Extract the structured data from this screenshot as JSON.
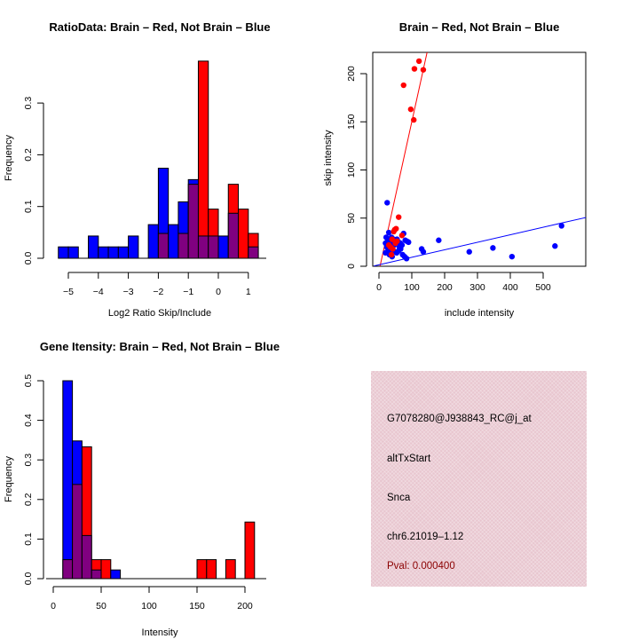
{
  "chart_data": [
    {
      "type": "bar",
      "subtype": "overlaid-histogram",
      "title": "RatioData: Brain – Red, Not Brain – Blue",
      "xlabel": "Log2 Ratio Skip/Include",
      "ylabel": "Frequency",
      "xlim": [
        -5.27,
        1.4
      ],
      "ylim": [
        0,
        0.38
      ],
      "xticks": [
        -5,
        -4,
        -3,
        -2,
        -1,
        0,
        1
      ],
      "xtick_labels": [
        "−5",
        "−4",
        "−3",
        "−2",
        "−1",
        "0",
        "1"
      ],
      "yticks": [
        0.0,
        0.1,
        0.2,
        0.3
      ],
      "ytick_labels": [
        "0.0",
        "0.1",
        "0.2",
        "0.3"
      ],
      "bin_start": -5.333,
      "bin_width": 0.3333,
      "series": [
        {
          "name": "Not Brain",
          "color": "#0000ff",
          "values": [
            0.022,
            0.022,
            0,
            0.043,
            0.022,
            0.022,
            0.022,
            0.043,
            0,
            0.065,
            0.174,
            0.065,
            0.109,
            0.152,
            0.043,
            0.043,
            0.043,
            0.087,
            0,
            0.022
          ]
        },
        {
          "name": "Brain",
          "color": "#ff0000",
          "values": [
            0,
            0,
            0,
            0,
            0,
            0,
            0,
            0,
            0,
            0,
            0.048,
            0,
            0.048,
            0.143,
            0.381,
            0.095,
            0,
            0.143,
            0.095,
            0.048
          ]
        }
      ],
      "overlap_color": "#800080"
    },
    {
      "type": "scatter",
      "title": "Brain – Red, Not Brain – Blue",
      "xlabel": "include intensity",
      "ylabel": "skip intensity",
      "xlim": [
        -15,
        565
      ],
      "ylim": [
        0,
        222
      ],
      "xticks": [
        0,
        100,
        200,
        300,
        400,
        500
      ],
      "xtick_labels": [
        "0",
        "100",
        "200",
        "300",
        "400",
        "500"
      ],
      "yticks": [
        0,
        50,
        100,
        150,
        200
      ],
      "ytick_labels": [
        "0",
        "50",
        "100",
        "150",
        "200"
      ],
      "series": [
        {
          "name": "Brain",
          "color": "#ff0000",
          "points": [
            [
              75,
              188
            ],
            [
              97,
              163
            ],
            [
              106,
              152
            ],
            [
              108,
              205
            ],
            [
              122,
              213
            ],
            [
              135,
              204
            ],
            [
              60,
              51
            ],
            [
              48,
              38
            ],
            [
              52,
              39
            ],
            [
              45,
              36
            ],
            [
              70,
              32
            ],
            [
              40,
              28
            ],
            [
              55,
              26
            ],
            [
              30,
              22
            ],
            [
              35,
              20
            ],
            [
              38,
              12
            ],
            [
              50,
              24
            ],
            [
              42,
              18
            ]
          ],
          "fit_line": {
            "slope": 1.55,
            "intercept": -5
          }
        },
        {
          "name": "Not Brain",
          "color": "#0000ff",
          "points": [
            [
              25,
              66
            ],
            [
              30,
              35
            ],
            [
              22,
              30
            ],
            [
              28,
              27
            ],
            [
              35,
              25
            ],
            [
              40,
              26
            ],
            [
              45,
              28
            ],
            [
              50,
              27
            ],
            [
              55,
              28
            ],
            [
              60,
              25
            ],
            [
              65,
              24
            ],
            [
              70,
              22
            ],
            [
              75,
              34
            ],
            [
              80,
              27
            ],
            [
              85,
              26
            ],
            [
              20,
              24
            ],
            [
              24,
              20
            ],
            [
              30,
              18
            ],
            [
              36,
              17
            ],
            [
              42,
              16
            ],
            [
              48,
              15
            ],
            [
              54,
              14
            ],
            [
              60,
              16
            ],
            [
              66,
              18
            ],
            [
              72,
              12
            ],
            [
              78,
              10
            ],
            [
              84,
              8
            ],
            [
              90,
              25
            ],
            [
              32,
              12
            ],
            [
              40,
              10
            ],
            [
              20,
              14
            ],
            [
              26,
              15
            ],
            [
              135,
              15
            ],
            [
              182,
              27
            ],
            [
              275,
              15
            ],
            [
              347,
              19
            ],
            [
              405,
              10
            ],
            [
              536,
              21
            ],
            [
              556,
              42
            ],
            [
              130,
              18
            ],
            [
              62,
              20
            ],
            [
              46,
              22
            ],
            [
              38,
              30
            ]
          ],
          "fit_line": {
            "slope": 0.078,
            "intercept": 1.5
          }
        }
      ]
    },
    {
      "type": "bar",
      "subtype": "overlaid-histogram",
      "title": "Gene Itensity: Brain – Red, Not Brain – Blue",
      "xlabel": "Intensity",
      "ylabel": "Frequency",
      "xlim": [
        0,
        222
      ],
      "ylim": [
        0,
        0.5
      ],
      "xticks": [
        0,
        50,
        100,
        150,
        200
      ],
      "xtick_labels": [
        "0",
        "50",
        "100",
        "150",
        "200"
      ],
      "yticks": [
        0.0,
        0.1,
        0.2,
        0.3,
        0.4,
        0.5
      ],
      "ytick_labels": [
        "0.0",
        "0.1",
        "0.2",
        "0.3",
        "0.4",
        "0.5"
      ],
      "bin_start": 10,
      "bin_width": 10,
      "series": [
        {
          "name": "Not Brain",
          "color": "#0000ff",
          "values": [
            0.5,
            0.348,
            0.109,
            0.022,
            0,
            0.022,
            0,
            0,
            0,
            0,
            0,
            0,
            0,
            0,
            0,
            0,
            0,
            0,
            0,
            0
          ]
        },
        {
          "name": "Brain",
          "color": "#ff0000",
          "values": [
            0.048,
            0.238,
            0.333,
            0.048,
            0.048,
            0,
            0,
            0,
            0,
            0,
            0,
            0,
            0,
            0,
            0.048,
            0.048,
            0,
            0.048,
            0,
            0.143
          ]
        }
      ],
      "overlap_color": "#800080"
    }
  ],
  "info_panel": {
    "probe_id": "G7078280@J938843_RC@j_at",
    "event_type": "altTxStart",
    "gene": "Snca",
    "location": "chr6.21019–1.12",
    "pval": "Pval: 0.000400"
  }
}
